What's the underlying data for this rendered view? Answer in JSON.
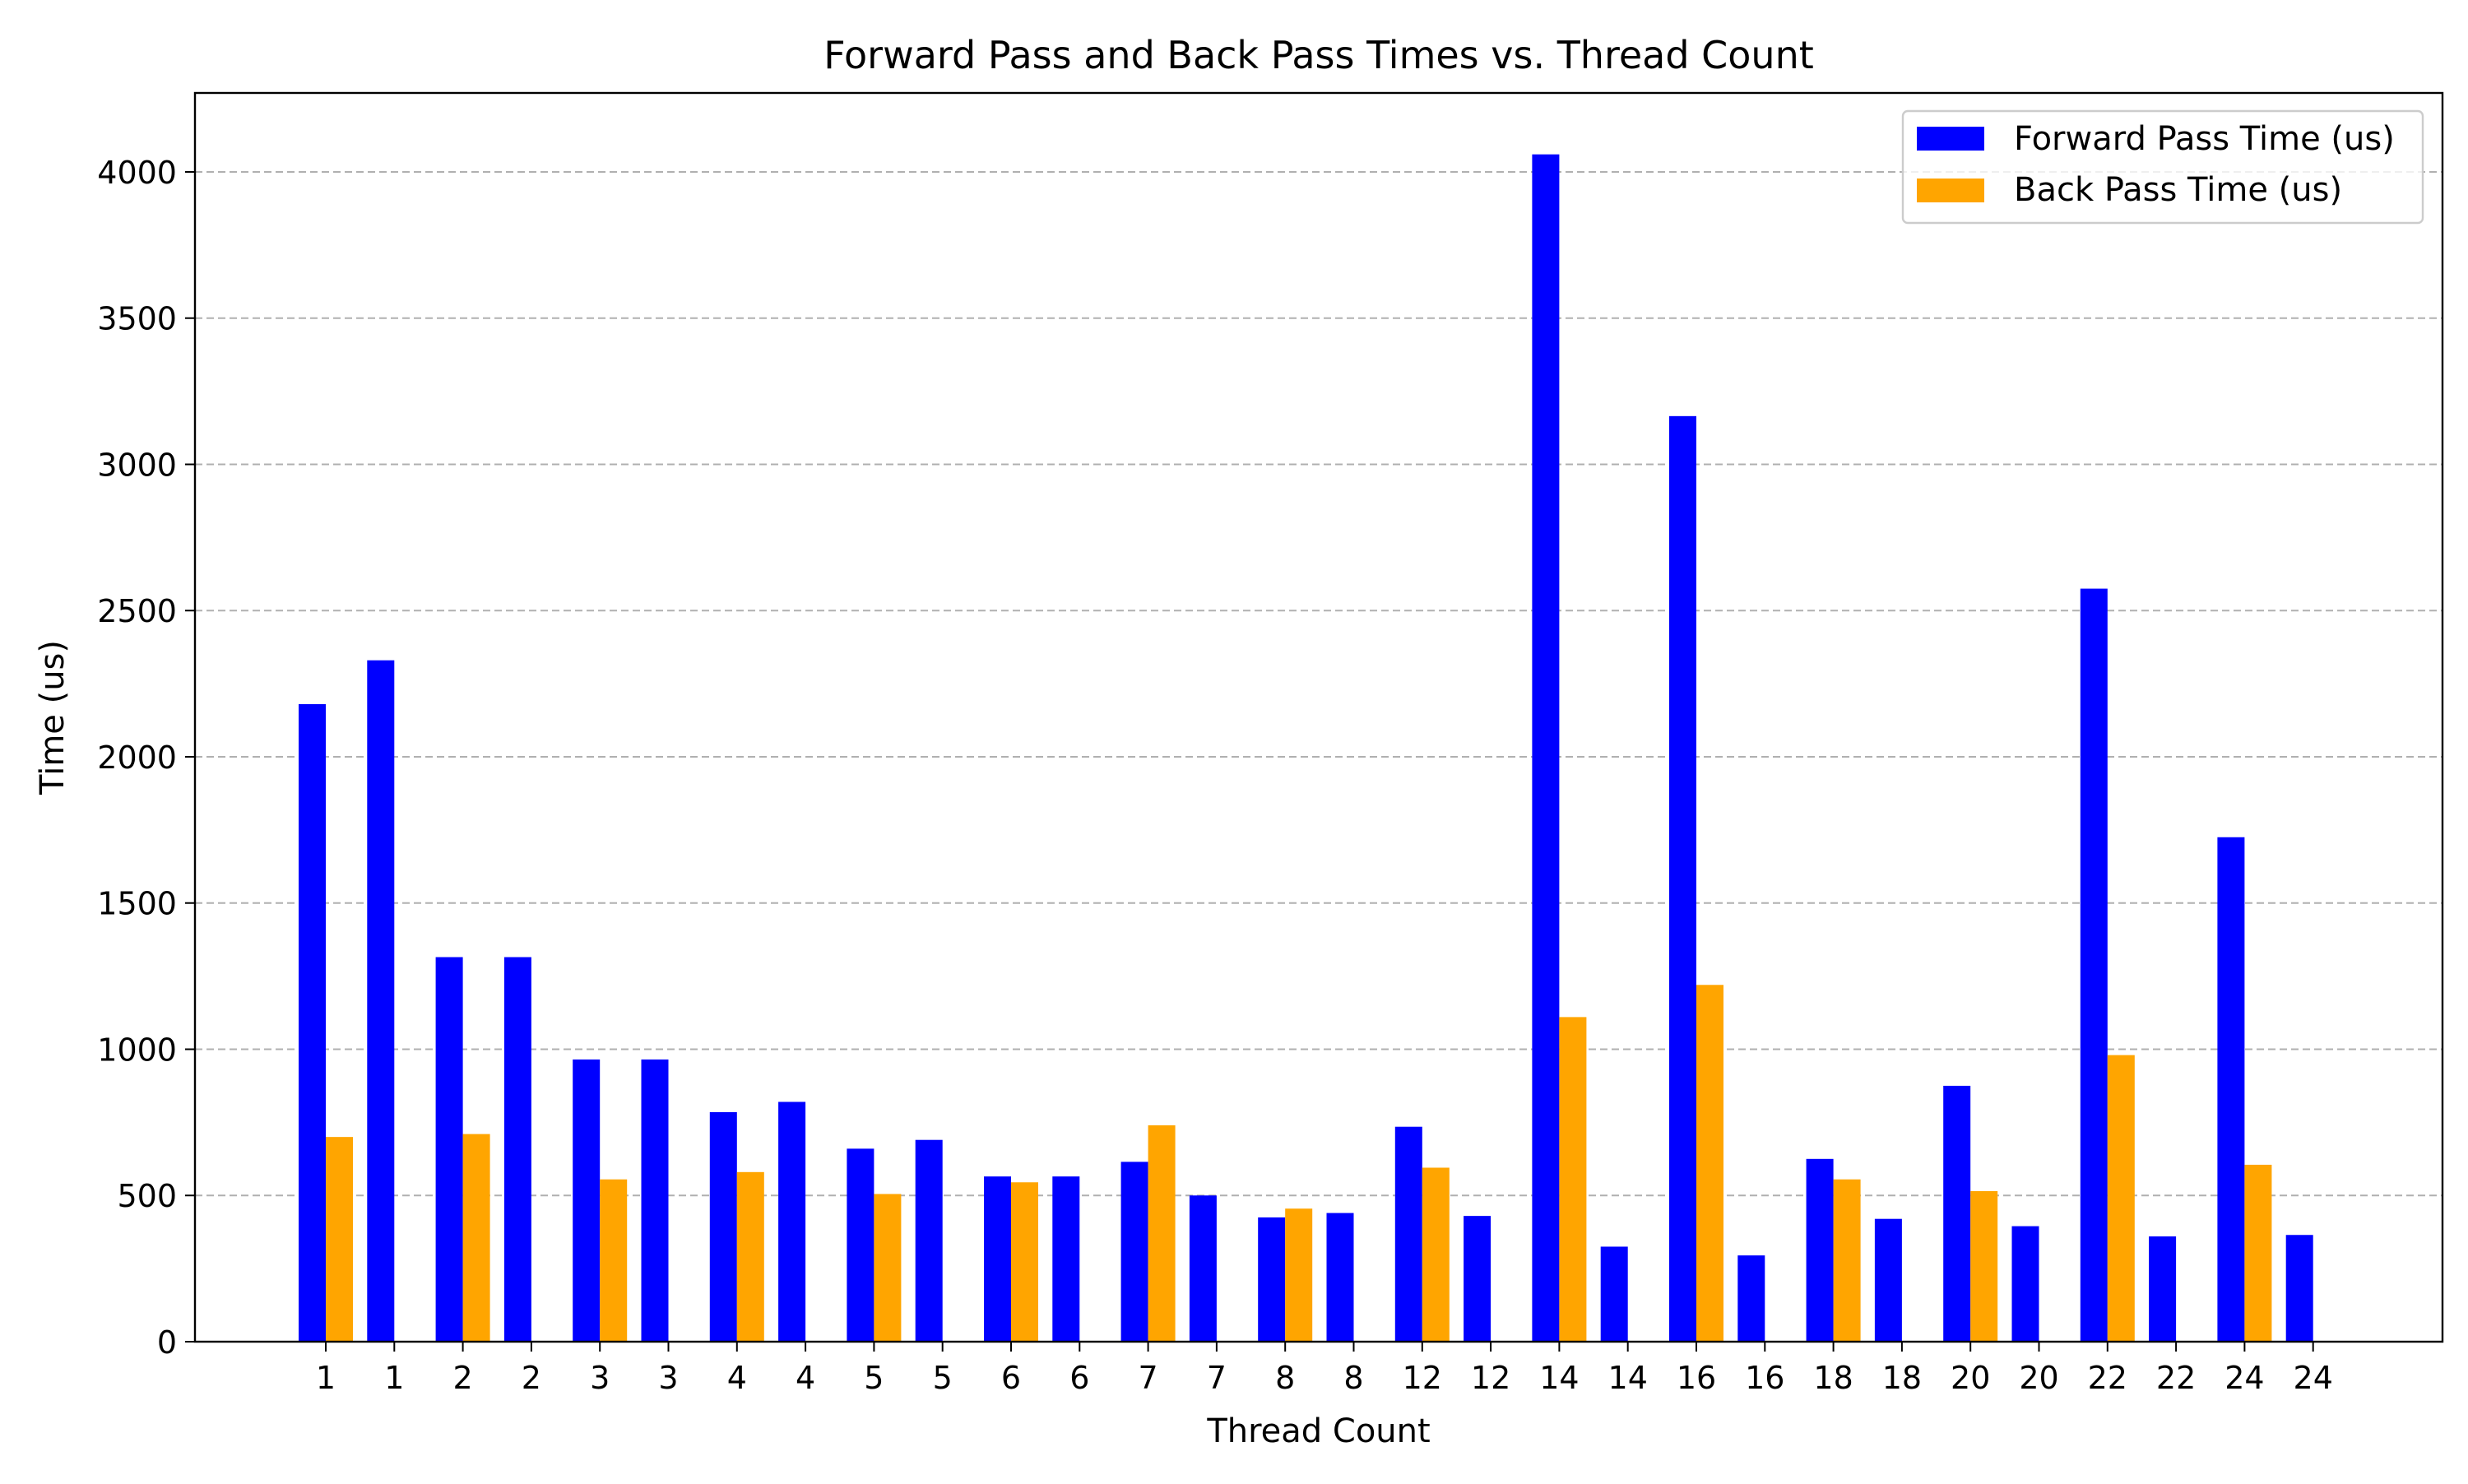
{
  "chart_data": {
    "type": "bar",
    "title": "Forward Pass and Back Pass Times vs. Thread Count",
    "xlabel": "Thread Count",
    "ylabel": "Time (us)",
    "ylim": [
      0,
      4270
    ],
    "yticks": [
      0,
      500,
      1000,
      1500,
      2000,
      2500,
      3000,
      3500,
      4000
    ],
    "grid": "y, dashed",
    "legend_position": "top-right",
    "categories": [
      "1",
      "1",
      "2",
      "2",
      "3",
      "3",
      "4",
      "4",
      "5",
      "5",
      "6",
      "6",
      "7",
      "7",
      "8",
      "8",
      "12",
      "12",
      "14",
      "14",
      "16",
      "16",
      "18",
      "18",
      "20",
      "20",
      "22",
      "22",
      "24",
      "24"
    ],
    "series": [
      {
        "name": "Forward Pass Time (us)",
        "color": "#0000ff",
        "values": [
          2180,
          2330,
          1315,
          1315,
          965,
          965,
          785,
          820,
          660,
          690,
          565,
          565,
          615,
          500,
          425,
          440,
          735,
          430,
          4060,
          325,
          3165,
          295,
          625,
          420,
          875,
          395,
          2575,
          360,
          1725,
          365
        ]
      },
      {
        "name": "Back Pass Time (us)",
        "color": "#ffa500",
        "values": [
          700,
          0,
          710,
          0,
          555,
          0,
          580,
          0,
          505,
          0,
          545,
          0,
          740,
          0,
          455,
          0,
          595,
          0,
          1110,
          0,
          1220,
          0,
          555,
          0,
          515,
          0,
          980,
          0,
          605,
          0
        ]
      }
    ]
  }
}
